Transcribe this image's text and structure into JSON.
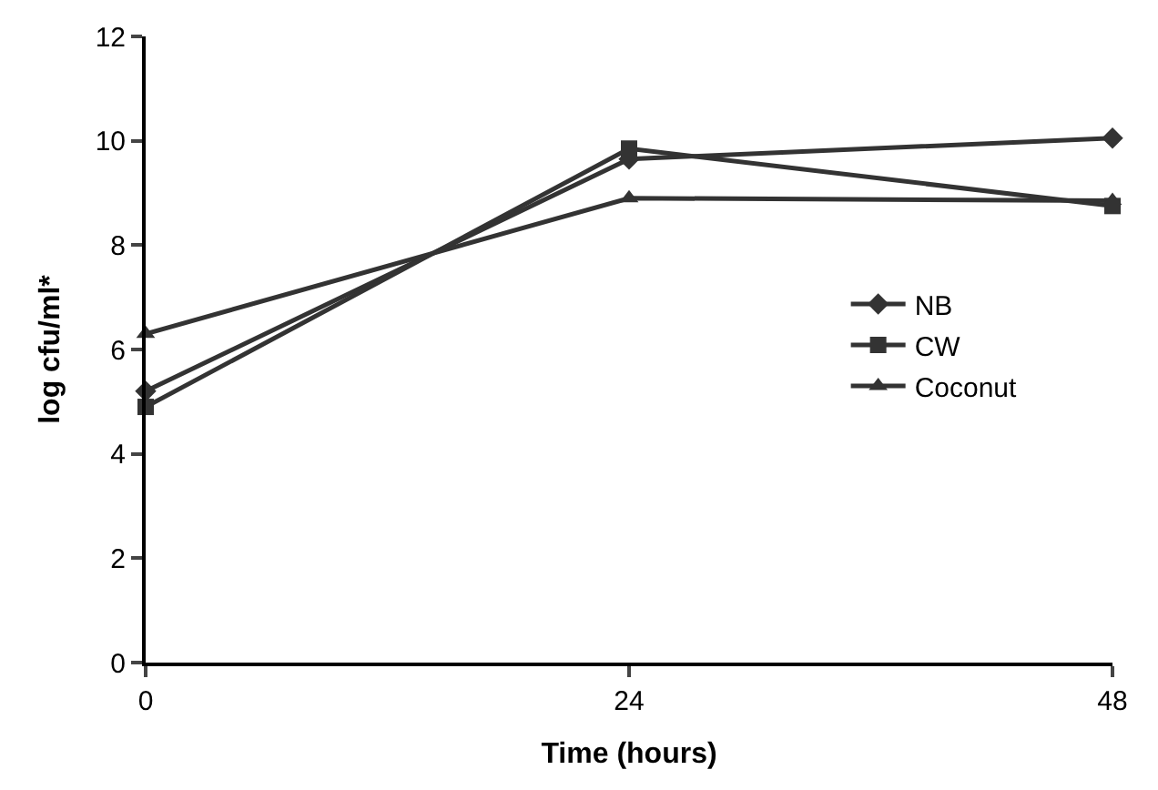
{
  "chart_data": {
    "type": "line",
    "xlabel": "Time (hours)",
    "ylabel": "log cfu/ml*",
    "x": [
      0,
      24,
      48
    ],
    "xlim": [
      0,
      48
    ],
    "xticks": [
      0,
      24,
      48
    ],
    "ylim": [
      0,
      12
    ],
    "yticks": [
      0,
      2,
      4,
      6,
      8,
      10,
      12
    ],
    "legend": "right",
    "series": [
      {
        "name": "NB",
        "color": "#333333",
        "marker": "diamond",
        "values": [
          5.2,
          9.65,
          10.05
        ]
      },
      {
        "name": "CW",
        "color": "#333333",
        "marker": "square",
        "values": [
          4.9,
          9.85,
          8.75
        ]
      },
      {
        "name": "Coconut",
        "color": "#333333",
        "marker": "triangle",
        "values": [
          6.3,
          8.9,
          8.85
        ]
      }
    ]
  }
}
